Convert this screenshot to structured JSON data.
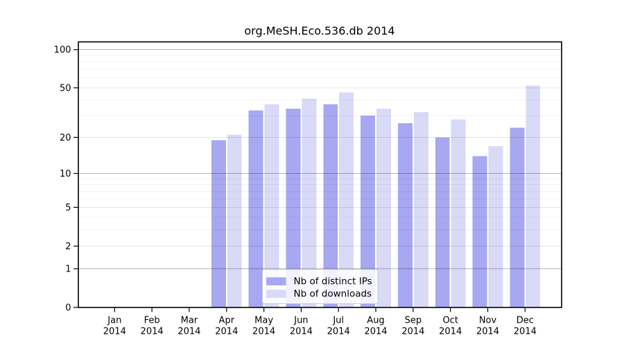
{
  "page": {
    "background": "#ffffff"
  },
  "chart_data": {
    "type": "bar",
    "title": "org.MeSH.Eco.536.db 2014",
    "categories": [
      "Jan",
      "Feb",
      "Mar",
      "Apr",
      "May",
      "Jun",
      "Jul",
      "Aug",
      "Sep",
      "Oct",
      "Nov",
      "Dec"
    ],
    "x_year_label": "2014",
    "series": [
      {
        "name": "Nb of distinct IPs",
        "color": "#a7a7f2",
        "values": [
          0,
          0,
          0,
          19,
          33,
          34,
          37,
          30,
          26,
          20,
          14,
          24
        ]
      },
      {
        "name": "Nb of downloads",
        "color": "#d9d9f8",
        "values": [
          0,
          0,
          0,
          21,
          37,
          41,
          46,
          34,
          32,
          28,
          17,
          52
        ]
      }
    ],
    "y_scale": "log1p",
    "ylim": [
      0,
      115
    ],
    "y_ticks": [
      0,
      1,
      2,
      5,
      10,
      20,
      50,
      100
    ],
    "y_decade_gridlines": [
      1,
      10,
      100
    ],
    "y_mid_gridlines": [
      2,
      5,
      20,
      50
    ],
    "y_minor_gridlines": [
      3,
      4,
      6,
      7,
      8,
      9,
      30,
      40,
      60,
      70,
      80,
      90
    ],
    "grid": true,
    "legend_position": "bottom-center",
    "xlabel": "",
    "ylabel": ""
  }
}
